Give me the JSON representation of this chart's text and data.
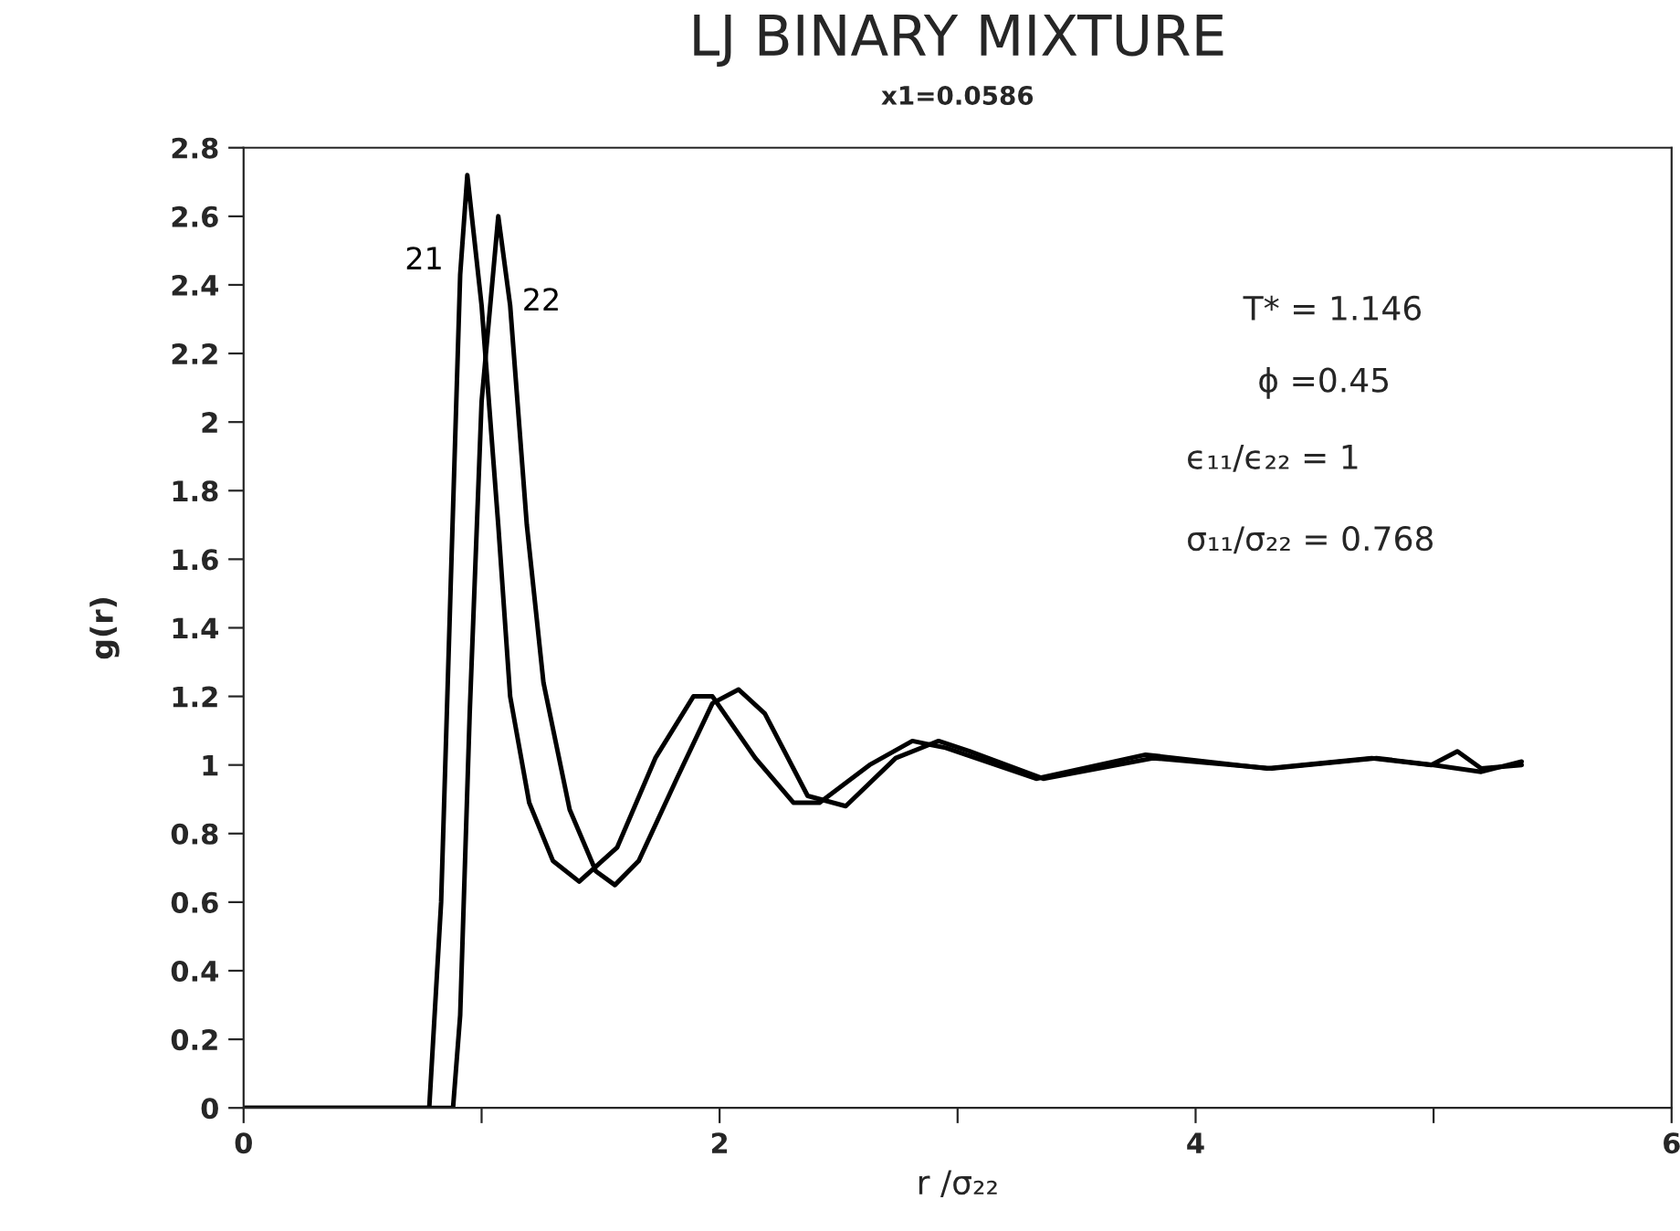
{
  "chart_data": {
    "type": "line",
    "title": "LJ BINARY MIXTURE",
    "subtitle": "x1=0.0586",
    "xlabel": "r /σ₂₂",
    "ylabel": "g(r)",
    "xlim": [
      0,
      6
    ],
    "ylim": [
      0,
      2.8
    ],
    "xticks": [
      0,
      {
        "value": 1,
        "label": null
      },
      2,
      {
        "value": 3,
        "label": null
      },
      4,
      {
        "value": 5,
        "label": null
      },
      6
    ],
    "yticks": [
      0,
      0.2,
      0.4,
      0.6,
      0.8,
      1,
      1.2,
      1.4,
      1.6,
      1.8,
      2,
      2.2,
      2.4,
      2.6,
      2.8
    ],
    "grid": false,
    "legend": false,
    "marker": "none",
    "line_style": "solid",
    "annotations": [
      "T* = 1.146",
      "ϕ =0.45",
      "ϵ₁₁/ϵ₂₂ = 1",
      "σ₁₁/σ₂₂ = 0.768"
    ],
    "series": [
      {
        "name": "21",
        "color": "#000000",
        "x": [
          0,
          0.78,
          0.83,
          0.87,
          0.91,
          0.94,
          1.0,
          1.07,
          1.12,
          1.2,
          1.3,
          1.41,
          1.57,
          1.73,
          1.89,
          1.97,
          2.15,
          2.31,
          2.42,
          2.63,
          2.81,
          2.95,
          3.33,
          3.79,
          4.3,
          4.74,
          4.99,
          5.1,
          5.2,
          5.37
        ],
        "values": [
          0,
          0,
          0.6,
          1.52,
          2.43,
          2.72,
          2.34,
          1.7,
          1.2,
          0.89,
          0.72,
          0.66,
          0.76,
          1.02,
          1.2,
          1.2,
          1.02,
          0.89,
          0.89,
          1.0,
          1.07,
          1.05,
          0.96,
          1.03,
          0.99,
          1.02,
          1.0,
          1.04,
          0.99,
          1.0
        ]
      },
      {
        "name": "22",
        "color": "#000000",
        "x": [
          0,
          0.88,
          0.91,
          0.95,
          1.0,
          1.07,
          1.12,
          1.19,
          1.26,
          1.37,
          1.48,
          1.56,
          1.66,
          1.82,
          1.97,
          2.08,
          2.19,
          2.37,
          2.53,
          2.74,
          2.92,
          3.05,
          3.36,
          3.82,
          4.32,
          4.76,
          5.0,
          5.2,
          5.37
        ],
        "values": [
          0,
          0,
          0.27,
          1.15,
          2.06,
          2.6,
          2.34,
          1.7,
          1.24,
          0.87,
          0.69,
          0.65,
          0.72,
          0.96,
          1.18,
          1.22,
          1.15,
          0.91,
          0.88,
          1.02,
          1.07,
          1.04,
          0.96,
          1.02,
          0.99,
          1.02,
          1.0,
          0.98,
          1.01
        ]
      }
    ]
  }
}
